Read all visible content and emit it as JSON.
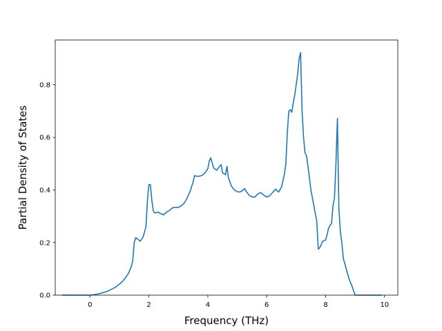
{
  "chart_data": {
    "type": "line",
    "title": "",
    "xlabel": "Frequency (THz)",
    "ylabel": "Partial Density of States",
    "xlim": [
      -1.18,
      10.45
    ],
    "ylim": [
      0.0,
      0.97
    ],
    "grid": false,
    "legend": "none",
    "xticks": [
      0,
      2,
      4,
      6,
      8,
      10
    ],
    "xtick_labels": [
      "0",
      "2",
      "4",
      "6",
      "8",
      "10"
    ],
    "yticks": [
      0.0,
      0.2,
      0.4,
      0.6,
      0.8
    ],
    "ytick_labels": [
      "0.0",
      "0.2",
      "0.4",
      "0.6",
      "0.8"
    ],
    "series": [
      {
        "color": "#1f77b4",
        "x": [
          -0.93,
          -0.5,
          0.0,
          0.2,
          0.4,
          0.6,
          0.8,
          0.9,
          1.0,
          1.1,
          1.2,
          1.3,
          1.4,
          1.45,
          1.5,
          1.55,
          1.6,
          1.7,
          1.8,
          1.9,
          1.95,
          2.0,
          2.05,
          2.1,
          2.15,
          2.2,
          2.3,
          2.4,
          2.5,
          2.6,
          2.7,
          2.8,
          2.9,
          3.0,
          3.1,
          3.2,
          3.3,
          3.4,
          3.5,
          3.55,
          3.6,
          3.7,
          3.8,
          3.9,
          4.0,
          4.05,
          4.1,
          4.15,
          4.2,
          4.3,
          4.4,
          4.45,
          4.5,
          4.6,
          4.65,
          4.7,
          4.8,
          4.9,
          5.0,
          5.1,
          5.2,
          5.25,
          5.3,
          5.4,
          5.5,
          5.6,
          5.7,
          5.8,
          5.9,
          6.0,
          6.1,
          6.2,
          6.3,
          6.4,
          6.5,
          6.6,
          6.65,
          6.7,
          6.75,
          6.8,
          6.85,
          6.9,
          6.95,
          7.0,
          7.05,
          7.1,
          7.15,
          7.2,
          7.25,
          7.3,
          7.35,
          7.4,
          7.5,
          7.6,
          7.7,
          7.75,
          7.8,
          7.9,
          8.0,
          8.05,
          8.1,
          8.15,
          8.2,
          8.25,
          8.3,
          8.35,
          8.4,
          8.45,
          8.5,
          8.55,
          8.6,
          8.7,
          8.8,
          8.9,
          9.0,
          9.05,
          9.1,
          9.3,
          9.5,
          9.7,
          9.9
        ],
        "y": [
          0.0,
          0.0,
          0.0,
          0.003,
          0.008,
          0.015,
          0.026,
          0.033,
          0.042,
          0.052,
          0.065,
          0.082,
          0.108,
          0.13,
          0.2,
          0.218,
          0.215,
          0.205,
          0.22,
          0.26,
          0.36,
          0.42,
          0.42,
          0.36,
          0.32,
          0.312,
          0.316,
          0.31,
          0.305,
          0.316,
          0.322,
          0.332,
          0.334,
          0.333,
          0.34,
          0.35,
          0.37,
          0.395,
          0.43,
          0.455,
          0.452,
          0.452,
          0.455,
          0.465,
          0.48,
          0.51,
          0.522,
          0.502,
          0.483,
          0.475,
          0.49,
          0.496,
          0.465,
          0.458,
          0.49,
          0.445,
          0.415,
          0.4,
          0.393,
          0.392,
          0.4,
          0.405,
          0.395,
          0.38,
          0.373,
          0.373,
          0.385,
          0.39,
          0.38,
          0.373,
          0.378,
          0.39,
          0.403,
          0.392,
          0.41,
          0.46,
          0.5,
          0.62,
          0.7,
          0.705,
          0.695,
          0.73,
          0.76,
          0.8,
          0.84,
          0.9,
          0.922,
          0.7,
          0.6,
          0.54,
          0.53,
          0.49,
          0.4,
          0.34,
          0.28,
          0.175,
          0.18,
          0.205,
          0.21,
          0.23,
          0.255,
          0.265,
          0.272,
          0.34,
          0.37,
          0.5,
          0.672,
          0.33,
          0.24,
          0.2,
          0.14,
          0.1,
          0.06,
          0.033,
          0.0,
          0.0,
          0.0,
          0.0,
          0.0,
          0.0,
          0.0
        ]
      }
    ]
  }
}
